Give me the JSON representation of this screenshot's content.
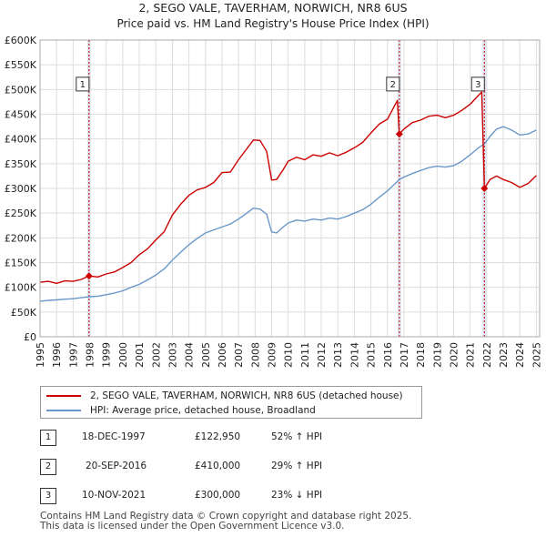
{
  "chart_data": {
    "type": "line",
    "title": "2, SEGO VALE, TAVERHAM, NORWICH, NR8 6US",
    "subtitle": "Price paid vs. HM Land Registry's House Price Index (HPI)",
    "xlim": [
      1995,
      2025.2
    ],
    "ylim": [
      0,
      600000
    ],
    "x_ticks": [
      1995,
      1996,
      1997,
      1998,
      1999,
      2000,
      2001,
      2002,
      2003,
      2004,
      2005,
      2006,
      2007,
      2008,
      2009,
      2010,
      2011,
      2012,
      2013,
      2014,
      2015,
      2016,
      2017,
      2018,
      2019,
      2020,
      2021,
      2022,
      2023,
      2024,
      2025
    ],
    "y_ticks": [
      {
        "value": 0,
        "label": "£0"
      },
      {
        "value": 50000,
        "label": "£50K"
      },
      {
        "value": 100000,
        "label": "£100K"
      },
      {
        "value": 150000,
        "label": "£150K"
      },
      {
        "value": 200000,
        "label": "£200K"
      },
      {
        "value": 250000,
        "label": "£250K"
      },
      {
        "value": 300000,
        "label": "£300K"
      },
      {
        "value": 350000,
        "label": "£350K"
      },
      {
        "value": 400000,
        "label": "£400K"
      },
      {
        "value": 450000,
        "label": "£450K"
      },
      {
        "value": 500000,
        "label": "£500K"
      },
      {
        "value": 550000,
        "label": "£550K"
      },
      {
        "value": 600000,
        "label": "£600K"
      }
    ],
    "series": [
      {
        "name": "2, SEGO VALE, TAVERHAM, NORWICH, NR8 6US (detached house)",
        "color": "#cc0000",
        "points": [
          [
            1995.0,
            110000
          ],
          [
            1995.5,
            112000
          ],
          [
            1996.0,
            108000
          ],
          [
            1996.5,
            113000
          ],
          [
            1997.0,
            112000
          ],
          [
            1997.5,
            116000
          ],
          [
            1997.96,
            122950
          ],
          [
            1998.5,
            121000
          ],
          [
            1999.0,
            127000
          ],
          [
            1999.5,
            131000
          ],
          [
            2000.0,
            140000
          ],
          [
            2000.5,
            150000
          ],
          [
            2001.0,
            166000
          ],
          [
            2001.5,
            178000
          ],
          [
            2002.0,
            196000
          ],
          [
            2002.5,
            212000
          ],
          [
            2003.0,
            246000
          ],
          [
            2003.5,
            268000
          ],
          [
            2004.0,
            286000
          ],
          [
            2004.5,
            297000
          ],
          [
            2005.0,
            302000
          ],
          [
            2005.5,
            312000
          ],
          [
            2006.0,
            332000
          ],
          [
            2006.5,
            333000
          ],
          [
            2007.0,
            358000
          ],
          [
            2007.5,
            380000
          ],
          [
            2007.9,
            398000
          ],
          [
            2008.3,
            397000
          ],
          [
            2008.7,
            375000
          ],
          [
            2009.0,
            317000
          ],
          [
            2009.3,
            318000
          ],
          [
            2009.7,
            338000
          ],
          [
            2010.0,
            355000
          ],
          [
            2010.5,
            363000
          ],
          [
            2011.0,
            358000
          ],
          [
            2011.5,
            368000
          ],
          [
            2012.0,
            365000
          ],
          [
            2012.5,
            372000
          ],
          [
            2013.0,
            366000
          ],
          [
            2013.5,
            373000
          ],
          [
            2014.0,
            382000
          ],
          [
            2014.5,
            393000
          ],
          [
            2015.0,
            412000
          ],
          [
            2015.5,
            430000
          ],
          [
            2016.0,
            440000
          ],
          [
            2016.6,
            478000
          ],
          [
            2016.72,
            410000
          ],
          [
            2017.0,
            420000
          ],
          [
            2017.5,
            433000
          ],
          [
            2018.0,
            438000
          ],
          [
            2018.5,
            446000
          ],
          [
            2019.0,
            448000
          ],
          [
            2019.5,
            443000
          ],
          [
            2020.0,
            448000
          ],
          [
            2020.5,
            458000
          ],
          [
            2021.0,
            470000
          ],
          [
            2021.5,
            488000
          ],
          [
            2021.7,
            495000
          ],
          [
            2021.86,
            300000
          ],
          [
            2022.2,
            318000
          ],
          [
            2022.6,
            325000
          ],
          [
            2023.0,
            318000
          ],
          [
            2023.5,
            312000
          ],
          [
            2024.0,
            302000
          ],
          [
            2024.5,
            310000
          ],
          [
            2025.0,
            326000
          ]
        ]
      },
      {
        "name": "HPI: Average price, detached house, Broadland",
        "color": "#6a97c9",
        "points": [
          [
            1995.0,
            72000
          ],
          [
            1995.5,
            73500
          ],
          [
            1996.0,
            74500
          ],
          [
            1996.5,
            76000
          ],
          [
            1997.0,
            77000
          ],
          [
            1997.5,
            79000
          ],
          [
            1997.96,
            80900
          ],
          [
            1998.5,
            82000
          ],
          [
            1999.0,
            85000
          ],
          [
            1999.5,
            88500
          ],
          [
            2000.0,
            93000
          ],
          [
            2000.5,
            100000
          ],
          [
            2001.0,
            106000
          ],
          [
            2001.5,
            115000
          ],
          [
            2002.0,
            125000
          ],
          [
            2002.5,
            137000
          ],
          [
            2003.0,
            155000
          ],
          [
            2003.5,
            171000
          ],
          [
            2004.0,
            186000
          ],
          [
            2004.5,
            199000
          ],
          [
            2005.0,
            210000
          ],
          [
            2005.5,
            216000
          ],
          [
            2006.0,
            222000
          ],
          [
            2006.5,
            228000
          ],
          [
            2007.0,
            238000
          ],
          [
            2007.5,
            250000
          ],
          [
            2007.9,
            260000
          ],
          [
            2008.3,
            258000
          ],
          [
            2008.7,
            248000
          ],
          [
            2009.0,
            212000
          ],
          [
            2009.3,
            210000
          ],
          [
            2009.7,
            222000
          ],
          [
            2010.0,
            230000
          ],
          [
            2010.5,
            236000
          ],
          [
            2011.0,
            234000
          ],
          [
            2011.5,
            238000
          ],
          [
            2012.0,
            236000
          ],
          [
            2012.5,
            240000
          ],
          [
            2013.0,
            238000
          ],
          [
            2013.5,
            243000
          ],
          [
            2014.0,
            250000
          ],
          [
            2014.5,
            257000
          ],
          [
            2015.0,
            268000
          ],
          [
            2015.5,
            282000
          ],
          [
            2016.0,
            295000
          ],
          [
            2016.72,
            317800
          ],
          [
            2017.0,
            323000
          ],
          [
            2017.5,
            330000
          ],
          [
            2018.0,
            336000
          ],
          [
            2018.5,
            342000
          ],
          [
            2019.0,
            345000
          ],
          [
            2019.5,
            343000
          ],
          [
            2020.0,
            346000
          ],
          [
            2020.5,
            355000
          ],
          [
            2021.0,
            368000
          ],
          [
            2021.5,
            382000
          ],
          [
            2021.86,
            390000
          ],
          [
            2022.2,
            405000
          ],
          [
            2022.6,
            420000
          ],
          [
            2023.0,
            425000
          ],
          [
            2023.5,
            418000
          ],
          [
            2024.0,
            408000
          ],
          [
            2024.5,
            410000
          ],
          [
            2025.0,
            418000
          ]
        ]
      }
    ],
    "sales": [
      {
        "label": "1",
        "x": 1997.96,
        "price": 122950
      },
      {
        "label": "2",
        "x": 2016.72,
        "price": 410000
      },
      {
        "label": "3",
        "x": 2021.86,
        "price": 300000
      }
    ],
    "box_value": 510000,
    "grid": true
  },
  "legend": {
    "property_label": "2, SEGO VALE, TAVERHAM, NORWICH, NR8 6US (detached house)",
    "hpi_label": "HPI: Average price, detached house, Broadland"
  },
  "transactions": [
    {
      "num": "1",
      "date": "18-DEC-1997",
      "price": "£122,950",
      "hpi": "52% ↑ HPI"
    },
    {
      "num": "2",
      "date": "20-SEP-2016",
      "price": "£410,000",
      "hpi": "29% ↑ HPI"
    },
    {
      "num": "3",
      "date": "10-NOV-2021",
      "price": "£300,000",
      "hpi": "23% ↓ HPI"
    }
  ],
  "footer": {
    "line1": "Contains HM Land Registry data © Crown copyright and database right 2025.",
    "line2": "This data is licensed under the Open Government Licence v3.0."
  },
  "colors": {
    "property": "#cc0000",
    "hpi": "#6a97c9",
    "shade": "#dce6f2",
    "grid": "#dddddd"
  }
}
